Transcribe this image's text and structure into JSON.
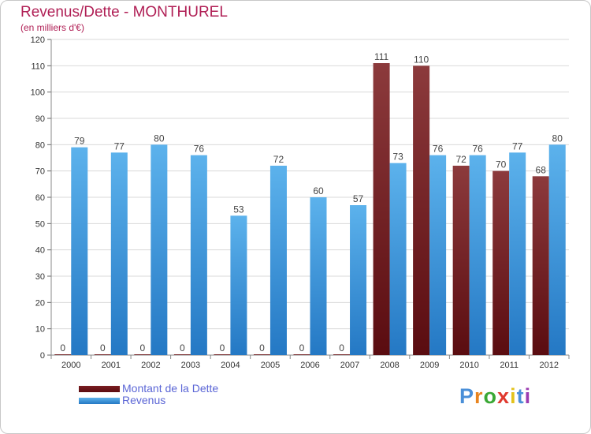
{
  "title": "Revenus/Dette - MONTHUREL",
  "subtitle": "(en milliers d'€)",
  "legend": {
    "debt_label": "Montant de la Dette",
    "revenue_label": "Revenus"
  },
  "logo": {
    "text": "Proxiti",
    "letter_colors": [
      "#4a8fd8",
      "#e8841f",
      "#3aa835",
      "#e03a2f",
      "#e3c21b",
      "#4a8fd8",
      "#9b3bb0"
    ]
  },
  "colors": {
    "debt": "#7a1e22",
    "revenue": "#3d9de3",
    "title": "#b01f55",
    "legend_text": "#5b66d6"
  },
  "chart_data": {
    "type": "bar",
    "categories": [
      "2000",
      "2001",
      "2002",
      "2003",
      "2004",
      "2005",
      "2006",
      "2007",
      "2008",
      "2009",
      "2010",
      "2011",
      "2012"
    ],
    "series": [
      {
        "name": "Montant de la Dette",
        "values": [
          0,
          0,
          0,
          0,
          0,
          0,
          0,
          0,
          111,
          110,
          72,
          70,
          68
        ]
      },
      {
        "name": "Revenus",
        "values": [
          79,
          77,
          80,
          76,
          53,
          72,
          60,
          57,
          73,
          76,
          76,
          77,
          80
        ]
      }
    ],
    "ylim": [
      0,
      120
    ],
    "yticks": [
      0,
      10,
      20,
      30,
      40,
      50,
      60,
      70,
      80,
      90,
      100,
      110,
      120
    ],
    "grid": true,
    "legend": "bottom-left"
  }
}
